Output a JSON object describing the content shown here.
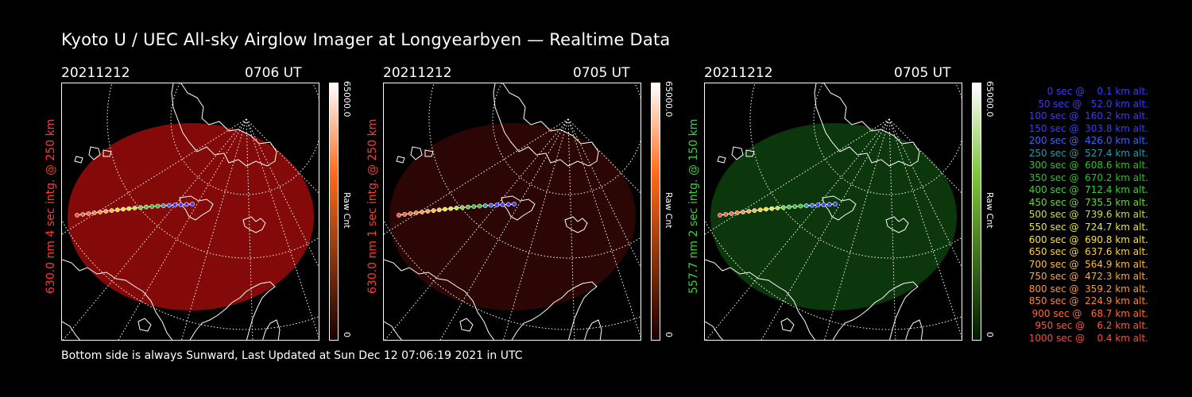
{
  "title": "Kyoto U / UEC All-sky Airglow Imager at Longyearbyen — Realtime Data",
  "footer": "Bottom side is always Sunward, Last Updated at Sun Dec 12 07:06:19 2021 in UTC",
  "panels": [
    {
      "date": "20211212",
      "time": "0706 UT",
      "side_label": "630.0 nm 4 sec intg. @ 250 km",
      "label_color": "#ff3b2f",
      "colorbar_max": "65000.0",
      "colorbar_min": "0",
      "colorbar_unit": "Raw Cnt",
      "glow_color": "#8a0b08",
      "bar_top": "#ffffff",
      "bar_mid": "#ff6b1a",
      "bar_bottom": "#1a0000"
    },
    {
      "date": "20211212",
      "time": "0705 UT",
      "side_label": "630.0 nm 1 sec intg. @ 250 km",
      "label_color": "#ff3b2f",
      "colorbar_max": "65000.0",
      "colorbar_min": "0",
      "colorbar_unit": "Raw Cnt",
      "glow_color": "#2e0505",
      "bar_top": "#ffffff",
      "bar_mid": "#ff6b1a",
      "bar_bottom": "#1a0000"
    },
    {
      "date": "20211212",
      "time": "0705 UT",
      "side_label": "557.7 nm 2 sec intg. @ 150 km",
      "label_color": "#39d439",
      "colorbar_max": "65000.0",
      "colorbar_min": "0",
      "colorbar_unit": "Raw Cnt",
      "glow_color": "#0d3a0d",
      "bar_top": "#ffffff",
      "bar_mid": "#7fc83a",
      "bar_bottom": "#001a00"
    }
  ],
  "legend": [
    {
      "text": "   0 sec @    0.1 km alt.",
      "color": "#3a3aff"
    },
    {
      "text": "  50 sec @   52.0 km alt.",
      "color": "#3a3aff"
    },
    {
      "text": " 100 sec @  160.2 km alt.",
      "color": "#3a3aff"
    },
    {
      "text": " 150 sec @  303.8 km alt.",
      "color": "#3a3aff"
    },
    {
      "text": " 200 sec @  426.0 km alt.",
      "color": "#3a64ff"
    },
    {
      "text": " 250 sec @  527.4 km alt.",
      "color": "#2a9aa8"
    },
    {
      "text": " 300 sec @  608.6 km alt.",
      "color": "#2ec02e"
    },
    {
      "text": " 350 sec @  670.2 km alt.",
      "color": "#2ec02e"
    },
    {
      "text": " 400 sec @  712.4 km alt.",
      "color": "#3ad23a"
    },
    {
      "text": " 450 sec @  735.5 km alt.",
      "color": "#6ad83a"
    },
    {
      "text": " 500 sec @  739.6 km alt.",
      "color": "#c8e03a"
    },
    {
      "text": " 550 sec @  724.7 km alt.",
      "color": "#e8e83a"
    },
    {
      "text": " 600 sec @  690.8 km alt.",
      "color": "#ffe03a"
    },
    {
      "text": " 650 sec @  637.6 km alt.",
      "color": "#ffd23a"
    },
    {
      "text": " 700 sec @  564.9 km alt.",
      "color": "#ffbe3a"
    },
    {
      "text": " 750 sec @  472.3 km alt.",
      "color": "#ffa83a"
    },
    {
      "text": " 800 sec @  359.2 km alt.",
      "color": "#ff963a"
    },
    {
      "text": " 850 sec @  224.9 km alt.",
      "color": "#ff823a"
    },
    {
      "text": " 900 sec @   68.7 km alt.",
      "color": "#ff6a3a"
    },
    {
      "text": " 950 sec @    6.2 km alt.",
      "color": "#ff5a3a"
    },
    {
      "text": "1000 sec @    0.4 km alt.",
      "color": "#ff4a3a"
    }
  ],
  "track_colors": [
    "#3a3aff",
    "#3a3aff",
    "#3a3aff",
    "#3a3aff",
    "#3a64ff",
    "#2a9aa8",
    "#2ec02e",
    "#2ec02e",
    "#3ad23a",
    "#6ad83a",
    "#c8e03a",
    "#e8e83a",
    "#ffe03a",
    "#ffd23a",
    "#ffbe3a",
    "#ffa83a",
    "#ff963a",
    "#ff823a",
    "#ff6a3a",
    "#ff5a3a",
    "#ff4a3a"
  ]
}
